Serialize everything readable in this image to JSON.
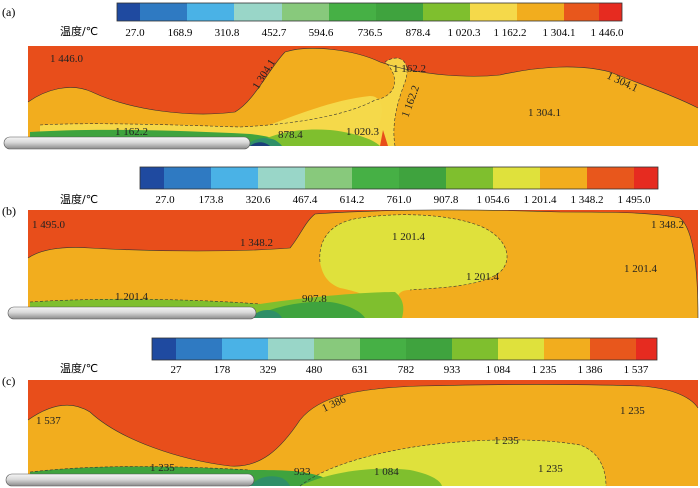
{
  "colors": {
    "band_red": "#e84e1b",
    "band_orange": "#f2ad1e",
    "band_yellow": "#f5d94a",
    "band_lime": "#dfe13c",
    "band_green": "#7dbb33",
    "band_dkgreen": "#4ea83a",
    "band_teal": "#2f8f68",
    "band_navy": "#1b3f7a",
    "pipe_light": "#eeeeee",
    "pipe_dark": "#8a8a8a"
  },
  "panels": [
    {
      "label": "(a)",
      "legend_title": "温度/℃",
      "legend_colors": [
        "#1f4aa0",
        "#2f7ac2",
        "#4ab2e6",
        "#99d6c8",
        "#88c97c",
        "#46b045",
        "#3fa33e",
        "#7fbf2e",
        "#f5d94a",
        "#f2ad1e",
        "#e8571c",
        "#e62b20"
      ],
      "legend_ticks": [
        "27.0",
        "168.9",
        "310.8",
        "452.7",
        "594.6",
        "736.5",
        "878.4",
        "1 020.3",
        "1 162.2",
        "1 304.1",
        "1 446.0"
      ],
      "contour_labels": [
        "1 446.0",
        "1 304.1",
        "1 162.2",
        "1 162.2",
        "1 304.1",
        "1 304.1",
        "1 162.2",
        "878.4",
        "1 020.3"
      ]
    },
    {
      "label": "(b)",
      "legend_title": "温度/℃",
      "legend_colors": [
        "#1f4aa0",
        "#2f7ac2",
        "#4ab2e6",
        "#99d6c8",
        "#88c97c",
        "#46b045",
        "#3fa33e",
        "#7fbf2e",
        "#dfe13c",
        "#f2ad1e",
        "#e8571c",
        "#e62b20"
      ],
      "legend_ticks": [
        "27.0",
        "173.8",
        "320.6",
        "467.4",
        "614.2",
        "761.0",
        "907.8",
        "1 054.6",
        "1 201.4",
        "1 348.2",
        "1 495.0"
      ],
      "contour_labels": [
        "1 495.0",
        "1 348.2",
        "1 201.4",
        "1 348.2",
        "1 201.4",
        "1 201.4",
        "1 201.4",
        "907.8"
      ]
    },
    {
      "label": "(c)",
      "legend_title": "温度/℃",
      "legend_colors": [
        "#1f4aa0",
        "#2f7ac2",
        "#4ab2e6",
        "#99d6c8",
        "#88c97c",
        "#46b045",
        "#3fa33e",
        "#7fbf2e",
        "#dfe13c",
        "#f2ad1e",
        "#e8571c",
        "#e62b20"
      ],
      "legend_ticks": [
        "27",
        "178",
        "329",
        "480",
        "631",
        "782",
        "933",
        "1 084",
        "1 235",
        "1 386",
        "1 537"
      ],
      "contour_labels": [
        "1 537",
        "1 386",
        "1 235",
        "1 235",
        "1 235",
        "1 235",
        "933",
        "1 084"
      ]
    }
  ]
}
